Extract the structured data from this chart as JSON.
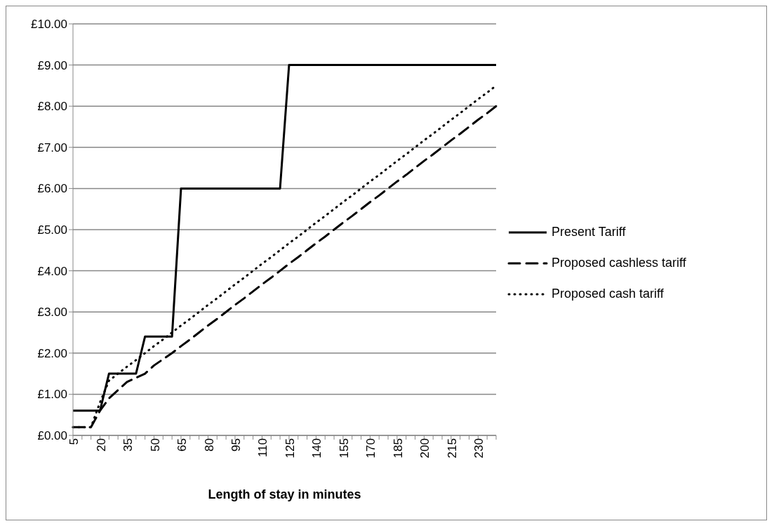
{
  "chart_data": {
    "type": "line",
    "xlabel": "Length of stay in minutes",
    "categories": [
      "5",
      null,
      null,
      "20",
      null,
      null,
      "35",
      null,
      null,
      "50",
      null,
      null,
      "65",
      null,
      null,
      "80",
      null,
      null,
      "95",
      null,
      null,
      "110",
      null,
      null,
      "125",
      null,
      null,
      "140",
      null,
      null,
      "155",
      null,
      null,
      "170",
      null,
      null,
      "185",
      null,
      null,
      "200",
      null,
      null,
      "215",
      null,
      null,
      "230",
      null,
      null
    ],
    "series": [
      {
        "name": "Present Tariff",
        "color": "#000000",
        "line_style": "solid",
        "values": [
          0.6,
          0.6,
          0.6,
          0.6,
          1.5,
          1.5,
          1.5,
          1.5,
          2.4,
          2.4,
          2.4,
          2.4,
          6,
          6,
          6,
          6,
          6,
          6,
          6,
          6,
          6,
          6,
          6,
          6,
          9,
          9,
          9,
          9,
          9,
          9,
          9,
          9,
          9,
          9,
          9,
          9,
          9,
          9,
          9,
          9,
          9,
          9,
          9,
          9,
          9,
          9,
          9,
          9
        ]
      },
      {
        "name": "Proposed cashless tariff",
        "color": "#000000",
        "line_style": "dashed",
        "values": [
          0.2,
          0.2,
          0.2,
          0.6,
          0.9,
          1.1,
          1.3,
          1.4,
          1.5,
          1.7,
          1.85,
          2.0,
          2.17,
          2.33,
          2.5,
          2.67,
          2.83,
          3.0,
          3.17,
          3.33,
          3.5,
          3.67,
          3.83,
          4.0,
          4.17,
          4.33,
          4.5,
          4.67,
          4.83,
          5.0,
          5.17,
          5.33,
          5.5,
          5.67,
          5.83,
          6.0,
          6.17,
          6.33,
          6.5,
          6.67,
          6.83,
          7.0,
          7.17,
          7.33,
          7.5,
          7.67,
          7.83,
          8.0
        ]
      },
      {
        "name": "Proposed cash tariff",
        "color": "#000000",
        "line_style": "dotted",
        "values": [
          0.2,
          0.2,
          0.2,
          0.8,
          1.33,
          1.5,
          1.67,
          1.83,
          2.0,
          2.17,
          2.33,
          2.5,
          2.67,
          2.83,
          3.0,
          3.17,
          3.33,
          3.5,
          3.67,
          3.83,
          4.0,
          4.17,
          4.33,
          4.5,
          4.67,
          4.83,
          5.0,
          5.17,
          5.33,
          5.5,
          5.67,
          5.83,
          6.0,
          6.17,
          6.33,
          6.5,
          6.67,
          6.83,
          7.0,
          7.17,
          7.33,
          7.5,
          7.67,
          7.83,
          8.0,
          8.17,
          8.33,
          8.5
        ]
      }
    ],
    "ylim": [
      0,
      10
    ],
    "yticks": [
      {
        "value": 0,
        "label": "£0.00"
      },
      {
        "value": 1,
        "label": "£1.00"
      },
      {
        "value": 2,
        "label": "£2.00"
      },
      {
        "value": 3,
        "label": "£3.00"
      },
      {
        "value": 4,
        "label": "£4.00"
      },
      {
        "value": 5,
        "label": "£5.00"
      },
      {
        "value": 6,
        "label": "£6.00"
      },
      {
        "value": 7,
        "label": "£7.00"
      },
      {
        "value": 8,
        "label": "£8.00"
      },
      {
        "value": 9,
        "label": "£9.00"
      },
      {
        "value": 10,
        "label": "£10.00"
      }
    ],
    "grid": "y",
    "legend": "right",
    "marker": "none"
  }
}
